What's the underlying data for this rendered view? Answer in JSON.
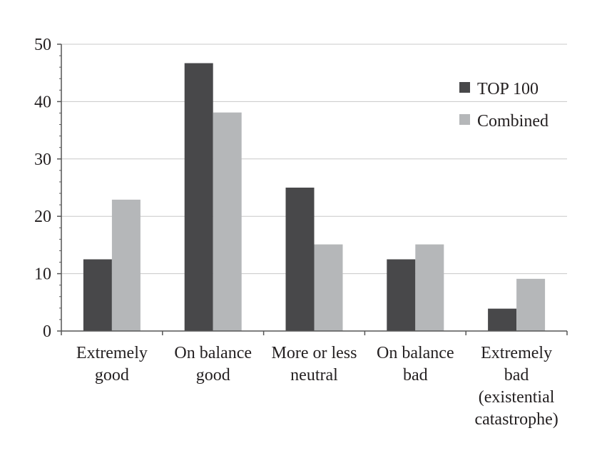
{
  "chart_data": {
    "type": "bar",
    "categories": [
      [
        "Extremely",
        "good"
      ],
      [
        "On balance",
        "good"
      ],
      [
        "More or less",
        "neutral"
      ],
      [
        "On balance",
        "bad"
      ],
      [
        "Extremely",
        "bad",
        "(existential",
        "catastrophe)"
      ]
    ],
    "series": [
      {
        "name": "TOP 100",
        "values": [
          12.5,
          46.7,
          25.0,
          12.5,
          3.9
        ],
        "color": "#48484a"
      },
      {
        "name": "Combined",
        "values": [
          22.9,
          38.1,
          15.1,
          15.1,
          9.1
        ],
        "color": "#b5b7b9"
      }
    ],
    "title": "",
    "xlabel": "",
    "ylabel": "",
    "ylim": [
      0,
      50
    ],
    "yticks": [
      0,
      10,
      20,
      30,
      40,
      50
    ],
    "grid": true,
    "legend_position": "top-right"
  }
}
